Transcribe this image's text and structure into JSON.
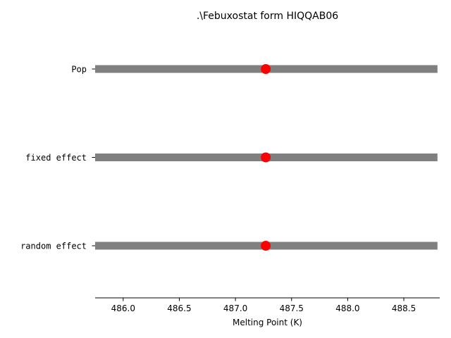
{
  "chart_data": {
    "type": "dot-interval",
    "title": ".\\Febuxostat form HIQQAB06",
    "xlabel": "Melting Point (K)",
    "ylabel": "",
    "xlim": [
      485.75,
      488.82
    ],
    "xticks": [
      486.0,
      486.5,
      487.0,
      487.5,
      488.0,
      488.5
    ],
    "xtick_labels": [
      "486.0",
      "486.5",
      "487.0",
      "487.5",
      "488.0",
      "488.5"
    ],
    "categories": [
      "Pop",
      "fixed effect",
      "random effect"
    ],
    "series": [
      {
        "label": "Pop",
        "estimate": 487.27,
        "lower": 485.75,
        "upper": 488.8
      },
      {
        "label": "fixed effect",
        "estimate": 487.27,
        "lower": 485.75,
        "upper": 488.8
      },
      {
        "label": "random effect",
        "estimate": 487.27,
        "lower": 485.75,
        "upper": 488.8
      }
    ],
    "colors": {
      "interval": "#808080",
      "estimate": "#ff0000"
    },
    "grid": false,
    "legend": "none"
  }
}
